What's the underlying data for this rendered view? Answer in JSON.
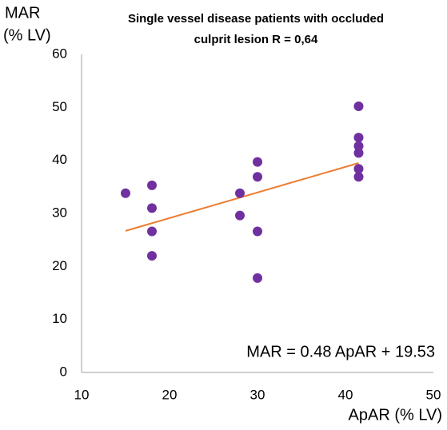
{
  "chart_data": {
    "type": "scatter",
    "title": [
      "Single vessel disease patients with occluded",
      "culprit lesion  R = 0,64"
    ],
    "y_label": [
      "MAR",
      "(% LV)"
    ],
    "x_label": "ApAR (% LV)",
    "annotation": "MAR = 0.48 ApAR + 19.53",
    "xlim": [
      10,
      50
    ],
    "xticks": [
      10,
      20,
      30,
      40,
      50
    ],
    "ylim": [
      0,
      60
    ],
    "yticks": [
      0,
      10,
      20,
      30,
      40,
      50,
      60
    ],
    "grid": false,
    "series": [
      {
        "color": "#7030a0",
        "x": [
          15,
          18,
          18,
          18,
          18,
          28,
          28,
          30,
          30,
          30,
          30,
          41.5,
          41.5,
          41.5,
          41.5,
          41.5,
          41.5
        ],
        "values": [
          33.8,
          35.3,
          31,
          26.6,
          22,
          33.8,
          29.6,
          39.7,
          36.9,
          26.6,
          17.8,
          50.2,
          44.3,
          42.7,
          41.4,
          38.4,
          36.9
        ]
      }
    ],
    "fit_line": {
      "color": "#ed7d31",
      "x": [
        15,
        41.5
      ],
      "values": [
        26.7,
        39.5
      ]
    }
  }
}
